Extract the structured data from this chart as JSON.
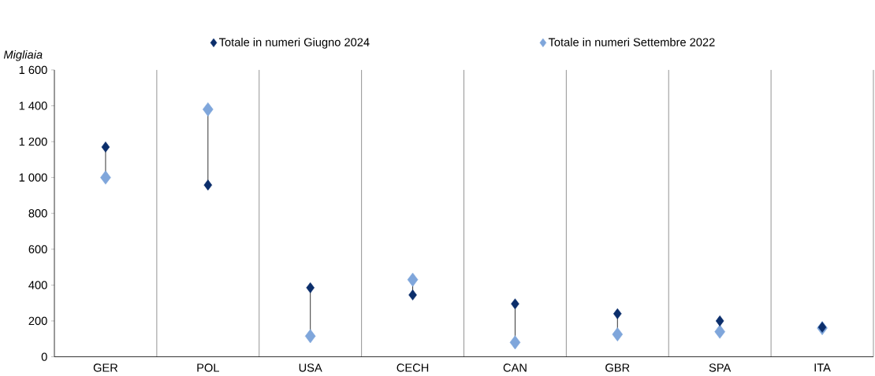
{
  "chart_data": {
    "type": "scatter",
    "categories": [
      "GER",
      "POL",
      "USA",
      "CECH",
      "CAN",
      "GBR",
      "SPA",
      "ITA"
    ],
    "series": [
      {
        "name": "Totale in numeri Giugno 2024",
        "color": "#0b2e6b",
        "values": [
          1170,
          958,
          385,
          345,
          295,
          240,
          200,
          165
        ]
      },
      {
        "name": "Totale in numeri Settembre 2022",
        "color": "#7fa6db",
        "values": [
          1000,
          1380,
          115,
          430,
          80,
          125,
          140,
          160
        ]
      }
    ],
    "ylabel": "Migliaia",
    "ylim": [
      0,
      1600
    ],
    "yticks": [
      0,
      200,
      400,
      600,
      800,
      {
        "value": 1000,
        "label": "1 000"
      },
      {
        "value": 1200,
        "label": "1 200"
      },
      {
        "value": 1400,
        "label": "1 400"
      },
      {
        "value": 1600,
        "label": "1 600"
      }
    ],
    "marker": "diamond",
    "grid": "x",
    "legend": "top"
  }
}
